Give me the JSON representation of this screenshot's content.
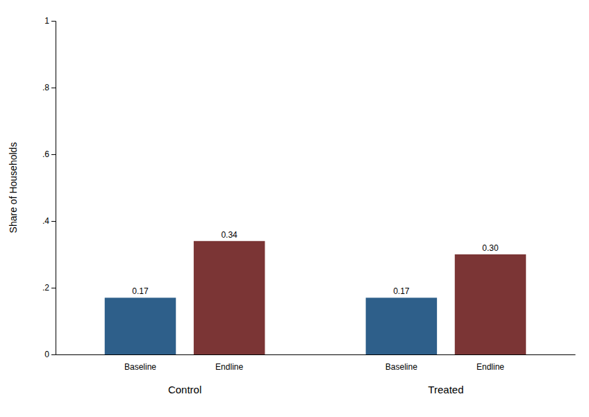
{
  "chart_data": {
    "type": "bar",
    "categories": [
      "Control",
      "Treated"
    ],
    "series": [
      {
        "name": "Baseline",
        "color": "#2E5F8A",
        "values": [
          0.17,
          0.17
        ],
        "value_labels": [
          "0.17",
          "0.17"
        ]
      },
      {
        "name": "Endline",
        "color": "#7B3535",
        "values": [
          0.34,
          0.3
        ],
        "value_labels": [
          "0.34",
          "0.30"
        ]
      }
    ],
    "ylabel": "Share of Households",
    "ylim": [
      0,
      1
    ],
    "yticks": [
      0,
      {
        "value": 0.2,
        "label": ".2"
      },
      {
        "value": 0.4,
        "label": ".4"
      },
      {
        "value": 0.6,
        "label": ".6"
      },
      {
        "value": 0.8,
        "label": ".8"
      },
      1
    ],
    "grid": false,
    "data_labels": true
  }
}
